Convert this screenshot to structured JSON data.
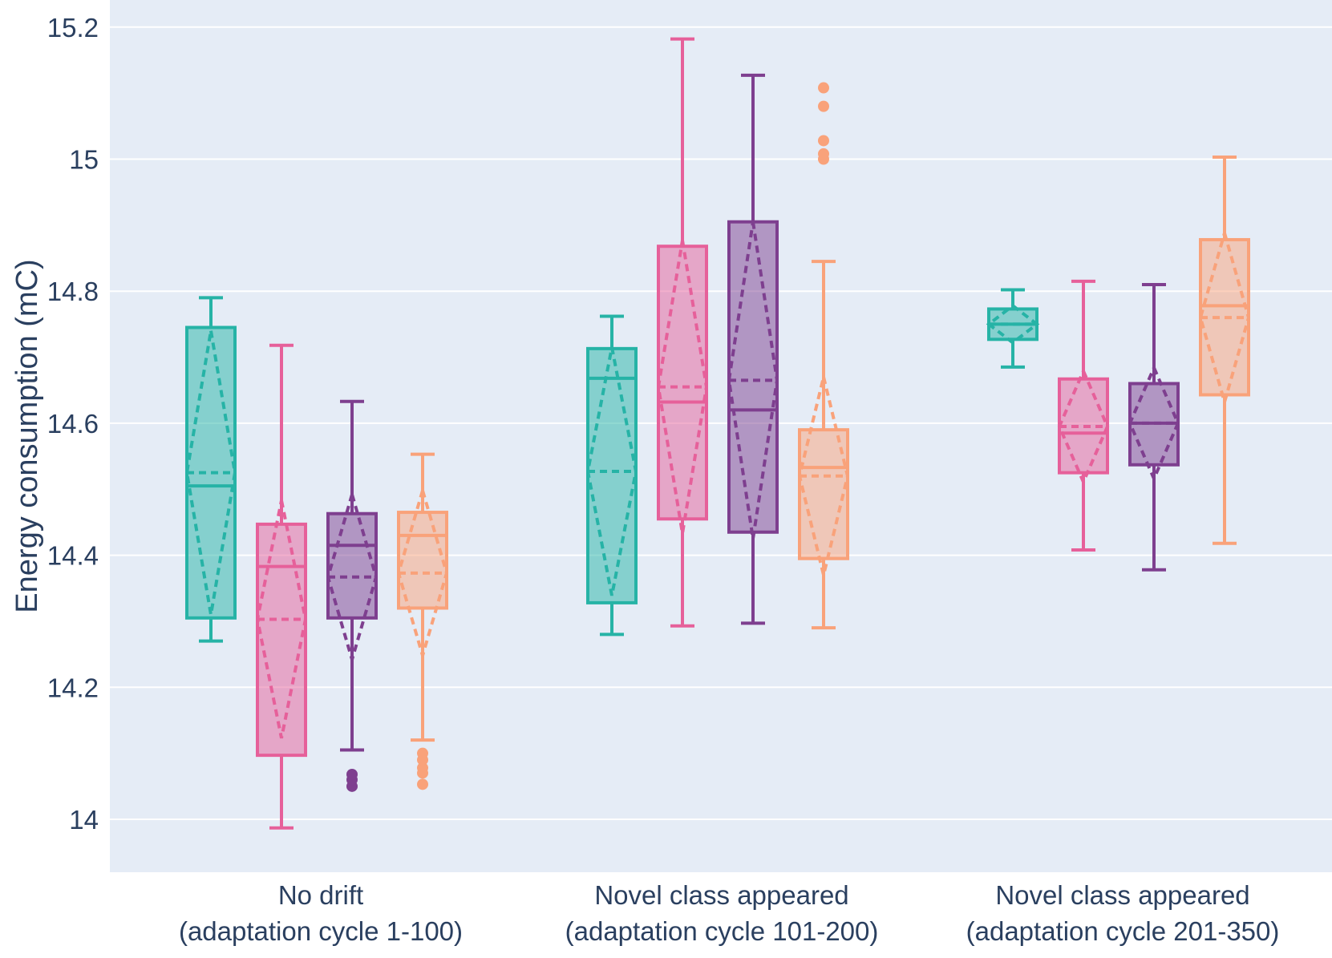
{
  "chart_data": {
    "type": "box",
    "ylabel": "Energy consumption (mC)",
    "xlabel": "",
    "ylim": [
      13.92,
      15.25
    ],
    "yticks": [
      14,
      14.2,
      14.4,
      14.6,
      14.8,
      15,
      15.2
    ],
    "ytick_labels": [
      "14",
      "14.2",
      "14.4",
      "14.6",
      "14.8",
      "15",
      "15.2"
    ],
    "grid": true,
    "legend": "none",
    "categories": [
      {
        "line1": "No drift",
        "line2": "(adaptation cycle 1-100)"
      },
      {
        "line1": "Novel class appeared",
        "line2": "(adaptation cycle 101-200)"
      },
      {
        "line1": "Novel class appeared",
        "line2": "(adaptation cycle 201-350)"
      }
    ],
    "series": [
      {
        "color": "#26b3a6",
        "boxes": [
          {
            "lower_fence": 14.27,
            "q1": 14.305,
            "median": 14.505,
            "q3": 14.745,
            "upper_fence": 14.79,
            "mean": 14.525,
            "sd": 0.215,
            "outliers": []
          },
          {
            "lower_fence": 14.28,
            "q1": 14.328,
            "median": 14.668,
            "q3": 14.713,
            "upper_fence": 14.762,
            "mean": 14.527,
            "sd": 0.188,
            "outliers": []
          },
          {
            "lower_fence": 14.685,
            "q1": 14.727,
            "median": 14.75,
            "q3": 14.773,
            "upper_fence": 14.802,
            "mean": 14.75,
            "sd": 0.028,
            "outliers": []
          }
        ]
      },
      {
        "color": "#e6609a",
        "boxes": [
          {
            "lower_fence": 13.987,
            "q1": 14.097,
            "median": 14.383,
            "q3": 14.447,
            "upper_fence": 14.718,
            "mean": 14.303,
            "sd": 0.18,
            "outliers": []
          },
          {
            "lower_fence": 14.293,
            "q1": 14.455,
            "median": 14.632,
            "q3": 14.868,
            "upper_fence": 15.182,
            "mean": 14.655,
            "sd": 0.222,
            "outliers": []
          },
          {
            "lower_fence": 14.408,
            "q1": 14.525,
            "median": 14.585,
            "q3": 14.667,
            "upper_fence": 14.815,
            "mean": 14.595,
            "sd": 0.084,
            "outliers": []
          }
        ]
      },
      {
        "color": "#7e3f8f",
        "boxes": [
          {
            "lower_fence": 14.105,
            "q1": 14.305,
            "median": 14.415,
            "q3": 14.463,
            "upper_fence": 14.633,
            "mean": 14.367,
            "sd": 0.125,
            "outliers": [
              14.05,
              14.06,
              14.068
            ]
          },
          {
            "lower_fence": 14.297,
            "q1": 14.435,
            "median": 14.62,
            "q3": 14.905,
            "upper_fence": 15.127,
            "mean": 14.665,
            "sd": 0.24,
            "outliers": []
          },
          {
            "lower_fence": 14.378,
            "q1": 14.537,
            "median": 14.6,
            "q3": 14.66,
            "upper_fence": 14.81,
            "mean": 14.6,
            "sd": 0.084,
            "outliers": []
          }
        ]
      },
      {
        "color": "#f9a27a",
        "boxes": [
          {
            "lower_fence": 14.12,
            "q1": 14.32,
            "median": 14.43,
            "q3": 14.465,
            "upper_fence": 14.553,
            "mean": 14.373,
            "sd": 0.125,
            "outliers": [
              14.053,
              14.07,
              14.078,
              14.09,
              14.1
            ]
          },
          {
            "lower_fence": 14.29,
            "q1": 14.395,
            "median": 14.533,
            "q3": 14.59,
            "upper_fence": 14.845,
            "mean": 14.52,
            "sd": 0.15,
            "outliers": [
              15.0,
              15.008,
              15.028,
              15.08,
              15.108
            ]
          },
          {
            "lower_fence": 14.418,
            "q1": 14.643,
            "median": 14.778,
            "q3": 14.878,
            "upper_fence": 15.003,
            "mean": 14.76,
            "sd": 0.128,
            "outliers": []
          }
        ]
      }
    ]
  }
}
